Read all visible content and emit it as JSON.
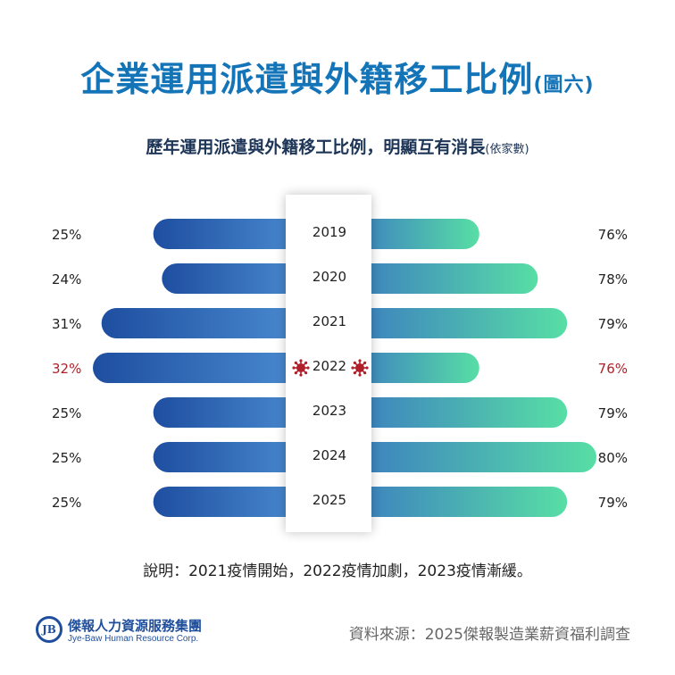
{
  "title": {
    "main": "企業運用派遣與外籍移工比例",
    "suffix": "(圖六)"
  },
  "subtitle": {
    "text": "歷年運用派遣與外籍移工比例，明顯互有消長",
    "unit": "(依家數)"
  },
  "colors": {
    "title": "#1474b8",
    "left_bar_start": "#1e4ea0",
    "left_bar_end": "#4a8bd0",
    "right_bar_start": "#3c7fc0",
    "right_bar_end": "#58dea5",
    "highlight_text": "#b0202a",
    "normal_text": "#222222"
  },
  "chart_data": {
    "type": "bar",
    "orientation": "diverging-horizontal",
    "categories": [
      "2019",
      "2020",
      "2021",
      "2022",
      "2023",
      "2024",
      "2025"
    ],
    "series": [
      {
        "name": "",
        "side": "left",
        "values": [
          25,
          24,
          31,
          32,
          25,
          25,
          25
        ]
      },
      {
        "name": "",
        "side": "right",
        "values": [
          76,
          78,
          79,
          76,
          79,
          80,
          79
        ]
      }
    ],
    "value_labels_left": [
      "25%",
      "24%",
      "31%",
      "32%",
      "25%",
      "25%",
      "25%"
    ],
    "value_labels_right": [
      "76%",
      "78%",
      "79%",
      "76%",
      "79%",
      "80%",
      "79%"
    ],
    "highlight_category": "2022",
    "highlight_icon": "virus-icon",
    "left_xlim": [
      20,
      32
    ],
    "right_xlim": [
      75,
      80
    ],
    "grid": false,
    "legend": "none"
  },
  "note": "說明：2021疫情開始，2022疫情加劇，2023疫情漸緩。",
  "logo": {
    "mark": "JB",
    "name_cn": "傑報人力資源服務集團",
    "name_en": "Jye-Baw Human Resource Corp."
  },
  "source": "資料來源：2025傑報製造業薪資福利調查"
}
